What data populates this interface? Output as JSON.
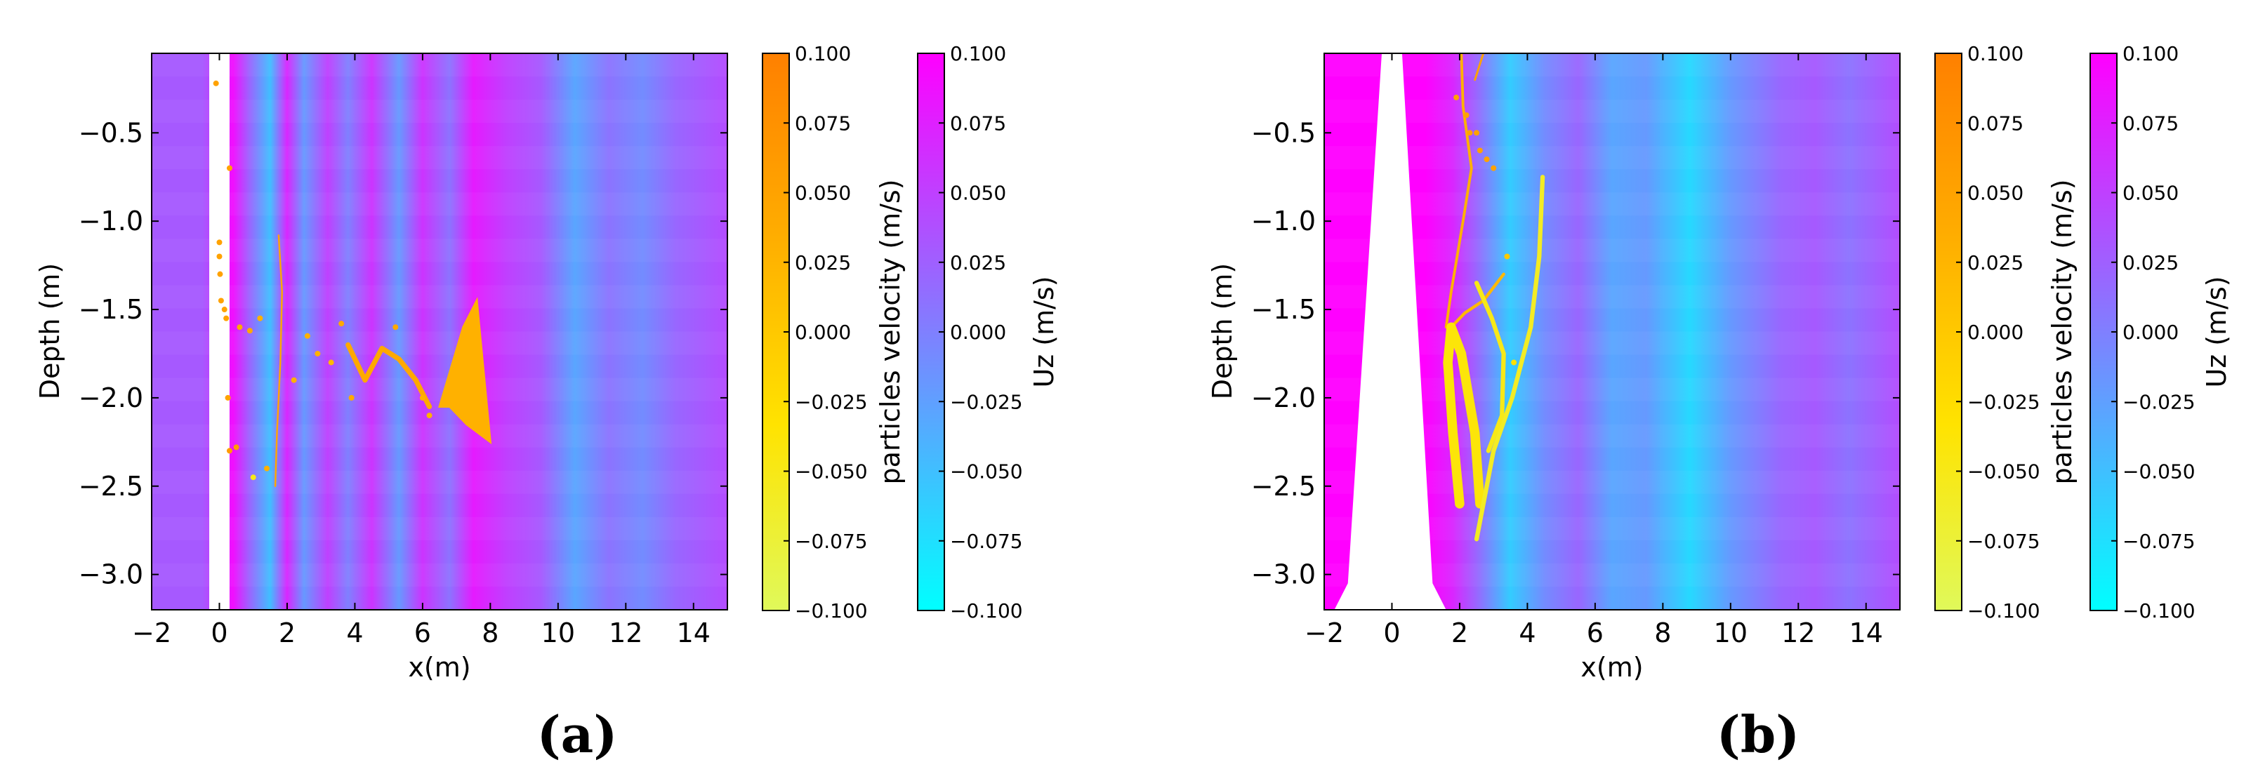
{
  "chart_data": [
    {
      "type": "heatmap",
      "panel_label": "(a)",
      "xlabel": "x(m)",
      "ylabel": "Depth (m)",
      "xlim": [
        -2,
        15
      ],
      "ylim": [
        -3.2,
        -0.05
      ],
      "x_ticks": [
        -2,
        0,
        2,
        4,
        6,
        8,
        10,
        12,
        14
      ],
      "y_ticks": [
        -0.5,
        -1.0,
        -1.5,
        -2.0,
        -2.5,
        -3.0
      ],
      "x_tick_labels": [
        "−2",
        "0",
        "2",
        "4",
        "6",
        "8",
        "10",
        "12",
        "14"
      ],
      "y_tick_labels": [
        "−0.5",
        "−1.0",
        "−1.5",
        "−2.0",
        "−2.5",
        "−3.0"
      ],
      "field": "Uz (m/s)",
      "field_columns": [
        {
          "x": -2.0,
          "uz": 0.03
        },
        {
          "x": -0.5,
          "uz": 0.03
        },
        {
          "x": 0.4,
          "uz": 0.09
        },
        {
          "x": 0.9,
          "uz": 0.02
        },
        {
          "x": 1.5,
          "uz": -0.05
        },
        {
          "x": 2.0,
          "uz": 0.07
        },
        {
          "x": 2.5,
          "uz": -0.02
        },
        {
          "x": 3.2,
          "uz": 0.05
        },
        {
          "x": 3.8,
          "uz": 0.0
        },
        {
          "x": 4.5,
          "uz": 0.06
        },
        {
          "x": 5.3,
          "uz": -0.02
        },
        {
          "x": 6.0,
          "uz": 0.06
        },
        {
          "x": 6.8,
          "uz": 0.01
        },
        {
          "x": 7.5,
          "uz": 0.08
        },
        {
          "x": 8.5,
          "uz": 0.05
        },
        {
          "x": 9.5,
          "uz": 0.03
        },
        {
          "x": 10.5,
          "uz": -0.03
        },
        {
          "x": 11.5,
          "uz": 0.01
        },
        {
          "x": 12.5,
          "uz": -0.01
        },
        {
          "x": 13.5,
          "uz": 0.02
        },
        {
          "x": 15.0,
          "uz": 0.04
        }
      ],
      "structure": [
        [
          -0.3,
          -3.2
        ],
        [
          0.3,
          -3.2
        ],
        [
          0.3,
          -0.05
        ],
        [
          -0.3,
          -0.05
        ]
      ],
      "particles": {
        "name": "particles velocity (m/s)",
        "clusters": [
          {
            "kind": "blob",
            "vel": 0.03,
            "outline": [
              [
                6.5,
                -2.05
              ],
              [
                7.2,
                -1.6
              ],
              [
                7.6,
                -1.45
              ],
              [
                8.0,
                -2.25
              ],
              [
                7.3,
                -2.15
              ],
              [
                6.8,
                -2.05
              ]
            ]
          },
          {
            "kind": "band",
            "vel": 0.04,
            "path": [
              [
                3.8,
                -1.7
              ],
              [
                4.3,
                -1.9
              ],
              [
                4.8,
                -1.72
              ],
              [
                5.3,
                -1.78
              ],
              [
                5.8,
                -1.9
              ],
              [
                6.2,
                -2.05
              ]
            ],
            "width": 0.15
          },
          {
            "kind": "band",
            "vel": 0.045,
            "path": [
              [
                1.75,
                -1.08
              ],
              [
                1.85,
                -1.4
              ],
              [
                1.8,
                -1.8
              ],
              [
                1.7,
                -2.2
              ],
              [
                1.65,
                -2.5
              ]
            ],
            "width": 0.05
          }
        ],
        "points": [
          [
            -0.1,
            -0.22,
            0.05
          ],
          [
            0.0,
            -1.12,
            0.05
          ],
          [
            0.0,
            -1.2,
            0.05
          ],
          [
            0.02,
            -1.3,
            0.05
          ],
          [
            0.05,
            -1.45,
            0.05
          ],
          [
            0.15,
            -1.5,
            0.05
          ],
          [
            0.2,
            -1.55,
            0.05
          ],
          [
            0.6,
            -1.6,
            0.04
          ],
          [
            0.9,
            -1.62,
            0.04
          ],
          [
            1.2,
            -1.55,
            0.03
          ],
          [
            0.25,
            -2.0,
            0.05
          ],
          [
            0.3,
            -2.3,
            0.06
          ],
          [
            0.5,
            -2.28,
            0.06
          ],
          [
            1.0,
            -2.45,
            -0.05
          ],
          [
            1.4,
            -2.4,
            0.03
          ],
          [
            2.6,
            -1.65,
            0.03
          ],
          [
            2.9,
            -1.75,
            0.03
          ],
          [
            3.3,
            -1.8,
            0.02
          ],
          [
            3.6,
            -1.58,
            0.04
          ],
          [
            5.2,
            -1.6,
            0.04
          ],
          [
            6.2,
            -2.1,
            0.03
          ],
          [
            6.0,
            -2.0,
            0.03
          ],
          [
            0.3,
            -0.7,
            0.05
          ],
          [
            2.2,
            -1.9,
            0.03
          ],
          [
            3.9,
            -2.0,
            0.04
          ]
        ]
      }
    },
    {
      "type": "heatmap",
      "panel_label": "(b)",
      "xlabel": "x(m)",
      "ylabel": "Depth (m)",
      "xlim": [
        -2,
        15
      ],
      "ylim": [
        -3.2,
        -0.05
      ],
      "x_ticks": [
        -2,
        0,
        2,
        4,
        6,
        8,
        10,
        12,
        14
      ],
      "y_ticks": [
        -0.5,
        -1.0,
        -1.5,
        -2.0,
        -2.5,
        -3.0
      ],
      "x_tick_labels": [
        "−2",
        "0",
        "2",
        "4",
        "6",
        "8",
        "10",
        "12",
        "14"
      ],
      "y_tick_labels": [
        "−0.5",
        "−1.0",
        "−1.5",
        "−2.0",
        "−2.5",
        "−3.0"
      ],
      "field": "Uz (m/s)",
      "field_columns": [
        {
          "x": -2.0,
          "uz": 0.1
        },
        {
          "x": -0.5,
          "uz": 0.1
        },
        {
          "x": 1.0,
          "uz": 0.1
        },
        {
          "x": 1.8,
          "uz": 0.07
        },
        {
          "x": 2.5,
          "uz": 0.02
        },
        {
          "x": 3.5,
          "uz": -0.06
        },
        {
          "x": 4.5,
          "uz": -0.01
        },
        {
          "x": 5.5,
          "uz": 0.02
        },
        {
          "x": 6.5,
          "uz": -0.03
        },
        {
          "x": 7.5,
          "uz": -0.02
        },
        {
          "x": 8.8,
          "uz": -0.07
        },
        {
          "x": 10.0,
          "uz": -0.02
        },
        {
          "x": 11.5,
          "uz": 0.02
        },
        {
          "x": 12.5,
          "uz": 0.03
        },
        {
          "x": 13.5,
          "uz": 0.01
        },
        {
          "x": 15.0,
          "uz": 0.04
        }
      ],
      "structure": [
        [
          -1.7,
          -3.2
        ],
        [
          -1.3,
          -3.05
        ],
        [
          -0.3,
          -0.05
        ],
        [
          0.3,
          -0.05
        ],
        [
          1.2,
          -3.05
        ],
        [
          1.6,
          -3.2
        ]
      ],
      "particles": {
        "name": "particles velocity (m/s)",
        "clusters": [
          {
            "kind": "band",
            "vel": 0.03,
            "path": [
              [
                2.05,
                -0.05
              ],
              [
                2.1,
                -0.35
              ],
              [
                2.35,
                -0.7
              ],
              [
                2.1,
                -1.0
              ],
              [
                1.75,
                -1.4
              ],
              [
                1.6,
                -1.6
              ]
            ],
            "width": 0.08
          },
          {
            "kind": "band",
            "vel": 0.02,
            "path": [
              [
                1.65,
                -1.62
              ],
              [
                2.15,
                -1.52
              ],
              [
                2.7,
                -1.45
              ],
              [
                3.3,
                -1.3
              ]
            ],
            "width": 0.09
          },
          {
            "kind": "band",
            "vel": -0.04,
            "path": [
              [
                2.0,
                -2.6
              ],
              [
                1.8,
                -2.2
              ],
              [
                1.65,
                -1.8
              ],
              [
                1.75,
                -1.6
              ],
              [
                2.05,
                -1.75
              ],
              [
                2.45,
                -2.2
              ],
              [
                2.6,
                -2.6
              ]
            ],
            "width": 0.28
          },
          {
            "kind": "band",
            "vel": -0.06,
            "path": [
              [
                4.45,
                -0.75
              ],
              [
                4.35,
                -1.2
              ],
              [
                4.1,
                -1.6
              ],
              [
                3.55,
                -2.0
              ],
              [
                3.0,
                -2.3
              ],
              [
                2.5,
                -2.8
              ]
            ],
            "width": 0.13
          },
          {
            "kind": "band",
            "vel": -0.05,
            "path": [
              [
                2.5,
                -1.35
              ],
              [
                2.95,
                -1.55
              ],
              [
                3.3,
                -1.75
              ],
              [
                3.25,
                -2.1
              ],
              [
                2.85,
                -2.3
              ]
            ],
            "width": 0.13
          },
          {
            "kind": "band",
            "vel": 0.05,
            "path": [
              [
                2.7,
                -0.05
              ],
              [
                2.45,
                -0.2
              ]
            ],
            "width": 0.06
          }
        ],
        "points": [
          [
            2.3,
            -0.5,
            0.05
          ],
          [
            2.6,
            -0.6,
            0.05
          ],
          [
            2.8,
            -0.65,
            0.05
          ],
          [
            3.0,
            -0.7,
            0.05
          ],
          [
            2.5,
            -0.5,
            0.05
          ],
          [
            2.2,
            -0.4,
            0.05
          ],
          [
            1.9,
            -0.3,
            0.05
          ],
          [
            3.4,
            -1.2,
            0.0
          ],
          [
            3.6,
            -1.8,
            -0.03
          ]
        ]
      }
    }
  ],
  "colorbars": [
    {
      "label": "particles velocity (m/s)",
      "ticks": [
        "0.100",
        "0.075",
        "0.050",
        "0.025",
        "0.000",
        "−0.025",
        "−0.050",
        "−0.075",
        "−0.100"
      ],
      "colors": [
        "#e0f95a",
        "#ffe300",
        "#ffae00",
        "#ff8000"
      ]
    },
    {
      "label": "Uz (m/s)",
      "ticks": [
        "0.100",
        "0.075",
        "0.050",
        "0.025",
        "0.000",
        "−0.025",
        "−0.050",
        "−0.075",
        "−0.100"
      ],
      "colors": [
        "#00ffff",
        "#ff00ff"
      ]
    },
    {
      "label": "particles velocity (m/s)",
      "ticks": [
        "0.100",
        "0.075",
        "0.050",
        "0.025",
        "0.000",
        "−0.025",
        "−0.050",
        "−0.075",
        "−0.100"
      ],
      "colors": [
        "#e0f95a",
        "#ffe300",
        "#ffae00",
        "#ff8000"
      ]
    },
    {
      "label": "Uz (m/s)",
      "ticks": [
        "0.100",
        "0.075",
        "0.050",
        "0.025",
        "0.000",
        "−0.025",
        "−0.050",
        "−0.075",
        "−0.100"
      ],
      "colors": [
        "#00ffff",
        "#ff00ff"
      ]
    }
  ]
}
